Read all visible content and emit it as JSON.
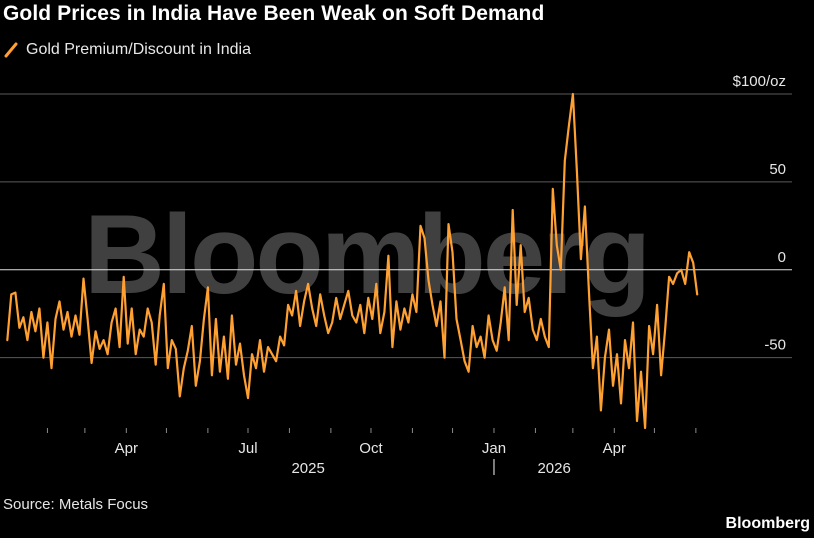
{
  "header": {
    "title": "Gold Prices in India Have Been Weak on Soft Demand"
  },
  "legend": {
    "label": "Gold Premium/Discount in India",
    "color": "#ffa033"
  },
  "footer": {
    "source": "Source: Metals Focus",
    "brand": "Bloomberg"
  },
  "watermark": {
    "text": "Bloomberg"
  },
  "chart_data": {
    "type": "line",
    "title": "Gold Prices in India Have Been Weak on Soft Demand",
    "xlabel": "",
    "ylabel": "",
    "y_unit": "$/oz",
    "ylim": [
      -90,
      100
    ],
    "yticks": [
      {
        "value": 100,
        "label": "$100/oz"
      },
      {
        "value": 50,
        "label": "50"
      },
      {
        "value": 0,
        "label": "0"
      },
      {
        "value": -50,
        "label": "-50"
      }
    ],
    "xticks": [
      {
        "label": "Apr",
        "date": "2025-04-01"
      },
      {
        "label": "Jul",
        "date": "2025-07-01"
      },
      {
        "label": "Oct",
        "date": "2025-10-01"
      },
      {
        "label": "Jan",
        "date": "2026-01-01"
      },
      {
        "label": "Apr",
        "date": "2026-04-01"
      }
    ],
    "year_labels": [
      {
        "label": "2025",
        "date": "2025-08-15"
      },
      {
        "label": "2026",
        "date": "2026-02-15"
      }
    ],
    "grid": true,
    "legend_position": "top-left",
    "series": [
      {
        "name": "Gold Premium/Discount in India",
        "color": "#ffa033",
        "points": [
          [
            "2025-01-02",
            -40
          ],
          [
            "2025-01-05",
            -14
          ],
          [
            "2025-01-08",
            -13
          ],
          [
            "2025-01-11",
            -33
          ],
          [
            "2025-01-14",
            -27
          ],
          [
            "2025-01-17",
            -40
          ],
          [
            "2025-01-20",
            -24
          ],
          [
            "2025-01-23",
            -35
          ],
          [
            "2025-01-26",
            -22
          ],
          [
            "2025-01-29",
            -50
          ],
          [
            "2025-02-01",
            -30
          ],
          [
            "2025-02-04",
            -56
          ],
          [
            "2025-02-07",
            -28
          ],
          [
            "2025-02-10",
            -18
          ],
          [
            "2025-02-13",
            -34
          ],
          [
            "2025-02-16",
            -24
          ],
          [
            "2025-02-19",
            -38
          ],
          [
            "2025-02-22",
            -26
          ],
          [
            "2025-02-25",
            -37
          ],
          [
            "2025-02-28",
            -5
          ],
          [
            "2025-03-03",
            -28
          ],
          [
            "2025-03-06",
            -53
          ],
          [
            "2025-03-09",
            -35
          ],
          [
            "2025-03-12",
            -45
          ],
          [
            "2025-03-15",
            -40
          ],
          [
            "2025-03-18",
            -48
          ],
          [
            "2025-03-21",
            -30
          ],
          [
            "2025-03-24",
            -22
          ],
          [
            "2025-03-27",
            -44
          ],
          [
            "2025-03-30",
            -4
          ],
          [
            "2025-04-02",
            -42
          ],
          [
            "2025-04-05",
            -22
          ],
          [
            "2025-04-08",
            -48
          ],
          [
            "2025-04-11",
            -34
          ],
          [
            "2025-04-14",
            -38
          ],
          [
            "2025-04-17",
            -22
          ],
          [
            "2025-04-20",
            -30
          ],
          [
            "2025-04-23",
            -54
          ],
          [
            "2025-04-26",
            -26
          ],
          [
            "2025-04-29",
            -8
          ],
          [
            "2025-05-02",
            -56
          ],
          [
            "2025-05-05",
            -40
          ],
          [
            "2025-05-08",
            -45
          ],
          [
            "2025-05-11",
            -72
          ],
          [
            "2025-05-14",
            -56
          ],
          [
            "2025-05-17",
            -46
          ],
          [
            "2025-05-20",
            -32
          ],
          [
            "2025-05-23",
            -66
          ],
          [
            "2025-05-26",
            -52
          ],
          [
            "2025-05-29",
            -28
          ],
          [
            "2025-06-01",
            -10
          ],
          [
            "2025-06-04",
            -60
          ],
          [
            "2025-06-07",
            -28
          ],
          [
            "2025-06-10",
            -58
          ],
          [
            "2025-06-13",
            -38
          ],
          [
            "2025-06-16",
            -62
          ],
          [
            "2025-06-19",
            -26
          ],
          [
            "2025-06-22",
            -54
          ],
          [
            "2025-06-25",
            -42
          ],
          [
            "2025-06-28",
            -60
          ],
          [
            "2025-07-01",
            -73
          ],
          [
            "2025-07-04",
            -48
          ],
          [
            "2025-07-07",
            -56
          ],
          [
            "2025-07-10",
            -40
          ],
          [
            "2025-07-13",
            -58
          ],
          [
            "2025-07-16",
            -44
          ],
          [
            "2025-07-19",
            -48
          ],
          [
            "2025-07-22",
            -52
          ],
          [
            "2025-07-25",
            -38
          ],
          [
            "2025-07-28",
            -43
          ],
          [
            "2025-07-31",
            -20
          ],
          [
            "2025-08-03",
            -26
          ],
          [
            "2025-08-06",
            -12
          ],
          [
            "2025-08-09",
            -32
          ],
          [
            "2025-08-12",
            -18
          ],
          [
            "2025-08-15",
            -8
          ],
          [
            "2025-08-18",
            -22
          ],
          [
            "2025-08-21",
            -32
          ],
          [
            "2025-08-24",
            -14
          ],
          [
            "2025-08-27",
            -26
          ],
          [
            "2025-08-30",
            -36
          ],
          [
            "2025-09-02",
            -30
          ],
          [
            "2025-09-05",
            -16
          ],
          [
            "2025-09-08",
            -28
          ],
          [
            "2025-09-11",
            -20
          ],
          [
            "2025-09-14",
            -12
          ],
          [
            "2025-09-17",
            -26
          ],
          [
            "2025-09-20",
            -30
          ],
          [
            "2025-09-23",
            -20
          ],
          [
            "2025-09-26",
            -36
          ],
          [
            "2025-09-29",
            -16
          ],
          [
            "2025-10-02",
            -28
          ],
          [
            "2025-10-05",
            -8
          ],
          [
            "2025-10-08",
            -36
          ],
          [
            "2025-10-11",
            -24
          ],
          [
            "2025-10-14",
            8
          ],
          [
            "2025-10-17",
            -44
          ],
          [
            "2025-10-20",
            -18
          ],
          [
            "2025-10-23",
            -34
          ],
          [
            "2025-10-26",
            -22
          ],
          [
            "2025-10-29",
            -30
          ],
          [
            "2025-11-01",
            -14
          ],
          [
            "2025-11-04",
            -24
          ],
          [
            "2025-11-07",
            25
          ],
          [
            "2025-11-10",
            18
          ],
          [
            "2025-11-13",
            -6
          ],
          [
            "2025-11-16",
            -20
          ],
          [
            "2025-11-19",
            -32
          ],
          [
            "2025-11-22",
            -18
          ],
          [
            "2025-11-25",
            -50
          ],
          [
            "2025-11-28",
            26
          ],
          [
            "2025-12-01",
            10
          ],
          [
            "2025-12-04",
            -28
          ],
          [
            "2025-12-07",
            -40
          ],
          [
            "2025-12-10",
            -52
          ],
          [
            "2025-12-13",
            -58
          ],
          [
            "2025-12-16",
            -32
          ],
          [
            "2025-12-19",
            -44
          ],
          [
            "2025-12-22",
            -38
          ],
          [
            "2025-12-25",
            -50
          ],
          [
            "2025-12-28",
            -26
          ],
          [
            "2025-12-31",
            -40
          ],
          [
            "2026-01-03",
            -46
          ],
          [
            "2026-01-06",
            -30
          ],
          [
            "2026-01-09",
            -10
          ],
          [
            "2026-01-12",
            -40
          ],
          [
            "2026-01-15",
            34
          ],
          [
            "2026-01-18",
            -20
          ],
          [
            "2026-01-21",
            14
          ],
          [
            "2026-01-24",
            -24
          ],
          [
            "2026-01-27",
            -16
          ],
          [
            "2026-01-30",
            -34
          ],
          [
            "2026-02-02",
            -40
          ],
          [
            "2026-02-05",
            -28
          ],
          [
            "2026-02-08",
            -38
          ],
          [
            "2026-02-11",
            -44
          ],
          [
            "2026-02-14",
            46
          ],
          [
            "2026-02-17",
            14
          ],
          [
            "2026-02-20",
            0
          ],
          [
            "2026-02-23",
            62
          ],
          [
            "2026-02-26",
            82
          ],
          [
            "2026-03-01",
            100
          ],
          [
            "2026-03-04",
            56
          ],
          [
            "2026-03-07",
            6
          ],
          [
            "2026-03-10",
            36
          ],
          [
            "2026-03-13",
            -12
          ],
          [
            "2026-03-16",
            -56
          ],
          [
            "2026-03-19",
            -38
          ],
          [
            "2026-03-22",
            -80
          ],
          [
            "2026-03-25",
            -50
          ],
          [
            "2026-03-28",
            -34
          ],
          [
            "2026-03-31",
            -66
          ],
          [
            "2026-04-03",
            -48
          ],
          [
            "2026-04-06",
            -76
          ],
          [
            "2026-04-09",
            -40
          ],
          [
            "2026-04-12",
            -56
          ],
          [
            "2026-04-15",
            -30
          ],
          [
            "2026-04-18",
            -86
          ],
          [
            "2026-04-21",
            -58
          ],
          [
            "2026-04-24",
            -90
          ],
          [
            "2026-04-27",
            -32
          ],
          [
            "2026-04-30",
            -48
          ],
          [
            "2026-05-03",
            -20
          ],
          [
            "2026-05-06",
            -60
          ],
          [
            "2026-05-09",
            -34
          ],
          [
            "2026-05-12",
            -4
          ],
          [
            "2026-05-15",
            -8
          ],
          [
            "2026-05-18",
            -2
          ],
          [
            "2026-05-21",
            0
          ],
          [
            "2026-05-24",
            -8
          ],
          [
            "2026-05-27",
            10
          ],
          [
            "2026-05-30",
            4
          ],
          [
            "2026-06-02",
            -14
          ]
        ]
      }
    ]
  }
}
